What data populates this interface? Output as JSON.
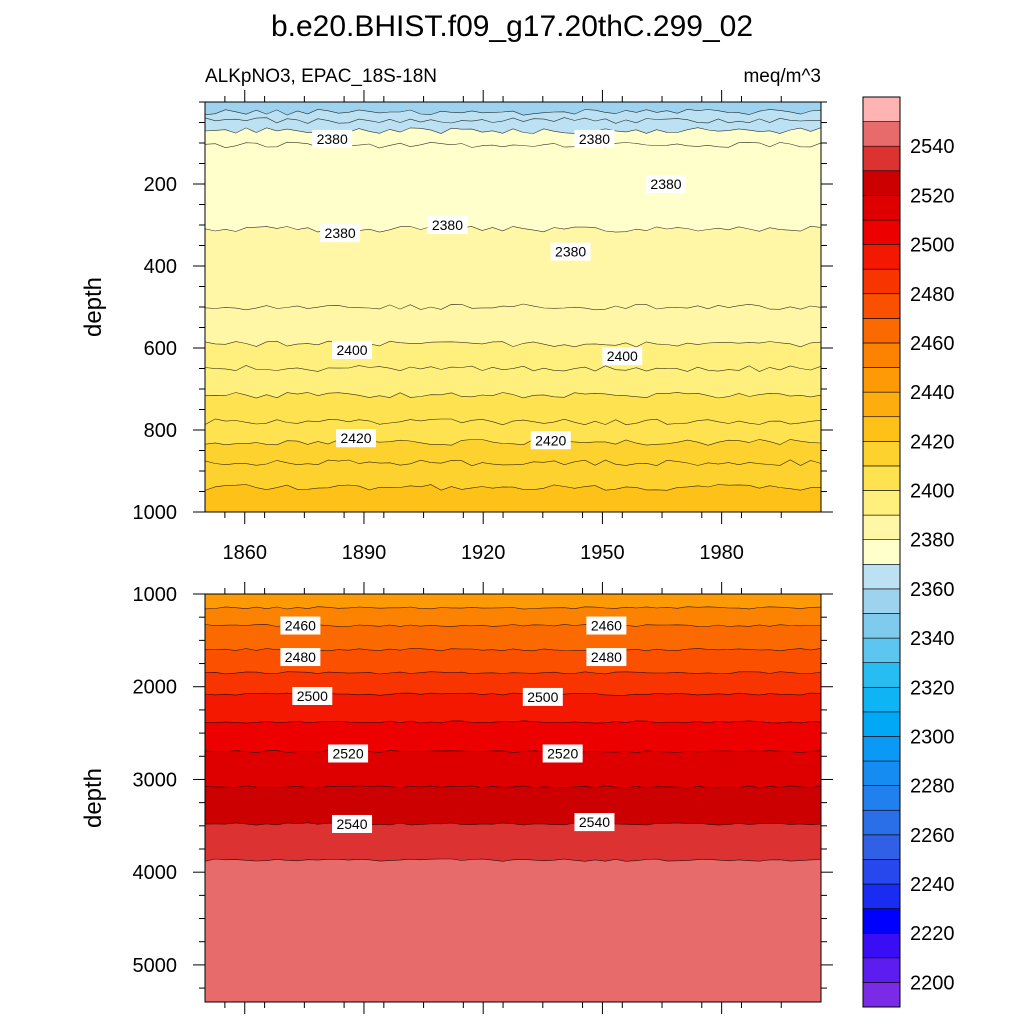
{
  "title": "b.e20.BHIST.f09_g17.20thC.299_02",
  "subtitle_left": "ALKpNO3, EPAC_18S-18N",
  "subtitle_right": "meq/m^3",
  "chart_data": [
    {
      "type": "heatmap",
      "panel": "upper",
      "ylabel": "depth",
      "xlabel": "",
      "x_ticks": [
        "1860",
        "1890",
        "1920",
        "1950",
        "1980"
      ],
      "x_tick_values": [
        1860,
        1890,
        1920,
        1950,
        1980
      ],
      "xlim": [
        1850,
        2005
      ],
      "y_ticks": [
        "200",
        "400",
        "600",
        "800",
        "1000"
      ],
      "y_tick_values": [
        200,
        400,
        600,
        800,
        1000
      ],
      "ylim": [
        0,
        1000
      ],
      "y_inverted": true,
      "contour_interval": 5,
      "contours": [
        {
          "level": 2360,
          "depth": 25
        },
        {
          "level": 2365,
          "depth": 45
        },
        {
          "level": 2370,
          "depth": 70
        },
        {
          "level": 2375,
          "depth": 105
        },
        {
          "level": 2380,
          "depth": 310
        },
        {
          "level": 2385,
          "depth": 500
        },
        {
          "level": 2390,
          "depth": 590
        },
        {
          "level": 2395,
          "depth": 650
        },
        {
          "level": 2400,
          "depth": 715
        },
        {
          "level": 2405,
          "depth": 780
        },
        {
          "level": 2410,
          "depth": 830
        },
        {
          "level": 2415,
          "depth": 880
        },
        {
          "level": 2420,
          "depth": 940
        }
      ],
      "contour_labels": [
        {
          "text": "2380",
          "x": 1882,
          "y": 90
        },
        {
          "text": "2380",
          "x": 1948,
          "y": 90
        },
        {
          "text": "2380",
          "x": 1966,
          "y": 200
        },
        {
          "text": "2380",
          "x": 1884,
          "y": 320
        },
        {
          "text": "2380",
          "x": 1911,
          "y": 300
        },
        {
          "text": "2380",
          "x": 1942,
          "y": 365
        },
        {
          "text": "2400",
          "x": 1887,
          "y": 605
        },
        {
          "text": "2400",
          "x": 1955,
          "y": 620
        },
        {
          "text": "2420",
          "x": 1888,
          "y": 820
        },
        {
          "text": "2420",
          "x": 1937,
          "y": 825
        }
      ]
    },
    {
      "type": "heatmap",
      "panel": "lower",
      "ylabel": "depth",
      "xlabel": "",
      "y_ticks": [
        "1000",
        "2000",
        "3000",
        "4000",
        "5000"
      ],
      "y_tick_values": [
        1000,
        2000,
        3000,
        4000,
        5000
      ],
      "ylim": [
        1000,
        5400
      ],
      "xlim": [
        1850,
        2005
      ],
      "y_inverted": true,
      "contour_interval": 10,
      "contours": [
        {
          "level": 2450,
          "depth": 1150
        },
        {
          "level": 2460,
          "depth": 1340
        },
        {
          "level": 2470,
          "depth": 1600
        },
        {
          "level": 2480,
          "depth": 1850
        },
        {
          "level": 2490,
          "depth": 2080
        },
        {
          "level": 2500,
          "depth": 2380
        },
        {
          "level": 2510,
          "depth": 2700
        },
        {
          "level": 2520,
          "depth": 3080
        },
        {
          "level": 2530,
          "depth": 3480
        },
        {
          "level": 2540,
          "depth": 3870
        }
      ],
      "contour_labels": [
        {
          "text": "2460",
          "x": 1874,
          "y": 1340
        },
        {
          "text": "2460",
          "x": 1951,
          "y": 1340
        },
        {
          "text": "2480",
          "x": 1874,
          "y": 1680
        },
        {
          "text": "2480",
          "x": 1951,
          "y": 1680
        },
        {
          "text": "2500",
          "x": 1877,
          "y": 2100
        },
        {
          "text": "2500",
          "x": 1935,
          "y": 2110
        },
        {
          "text": "2520",
          "x": 1886,
          "y": 2720
        },
        {
          "text": "2520",
          "x": 1940,
          "y": 2720
        },
        {
          "text": "2540",
          "x": 1887,
          "y": 3480
        },
        {
          "text": "2540",
          "x": 1948,
          "y": 3460
        }
      ]
    }
  ],
  "colorbar": {
    "min": 2190,
    "max": 2560,
    "tick_labels": [
      "2200",
      "2220",
      "2240",
      "2260",
      "2280",
      "2300",
      "2320",
      "2340",
      "2360",
      "2380",
      "2400",
      "2420",
      "2440",
      "2460",
      "2480",
      "2500",
      "2520",
      "2540"
    ],
    "tick_values": [
      2200,
      2220,
      2240,
      2260,
      2280,
      2300,
      2320,
      2340,
      2360,
      2380,
      2400,
      2420,
      2440,
      2460,
      2480,
      2500,
      2520,
      2540
    ],
    "bands": [
      {
        "from": 2190,
        "to": 2200,
        "color": "#7b2be8"
      },
      {
        "from": 2200,
        "to": 2210,
        "color": "#5d1cf0"
      },
      {
        "from": 2210,
        "to": 2220,
        "color": "#3a0ef5"
      },
      {
        "from": 2220,
        "to": 2230,
        "color": "#0000ff"
      },
      {
        "from": 2230,
        "to": 2240,
        "color": "#1b2cf2"
      },
      {
        "from": 2240,
        "to": 2250,
        "color": "#2748ec"
      },
      {
        "from": 2250,
        "to": 2260,
        "color": "#3060e6"
      },
      {
        "from": 2260,
        "to": 2270,
        "color": "#2a6fe8"
      },
      {
        "from": 2270,
        "to": 2280,
        "color": "#1f80ee"
      },
      {
        "from": 2280,
        "to": 2290,
        "color": "#148cf2"
      },
      {
        "from": 2290,
        "to": 2300,
        "color": "#0a99f5"
      },
      {
        "from": 2300,
        "to": 2310,
        "color": "#00a8f5"
      },
      {
        "from": 2310,
        "to": 2320,
        "color": "#0fb4f5"
      },
      {
        "from": 2320,
        "to": 2330,
        "color": "#28bdf2"
      },
      {
        "from": 2330,
        "to": 2340,
        "color": "#5cc5f0"
      },
      {
        "from": 2340,
        "to": 2350,
        "color": "#7fcbee"
      },
      {
        "from": 2350,
        "to": 2360,
        "color": "#9dd3ef"
      },
      {
        "from": 2360,
        "to": 2370,
        "color": "#bce1f2"
      },
      {
        "from": 2370,
        "to": 2380,
        "color": "#ffffcc"
      },
      {
        "from": 2380,
        "to": 2390,
        "color": "#fff7a6"
      },
      {
        "from": 2390,
        "to": 2400,
        "color": "#ffef7c"
      },
      {
        "from": 2400,
        "to": 2410,
        "color": "#fee250"
      },
      {
        "from": 2410,
        "to": 2420,
        "color": "#fed22e"
      },
      {
        "from": 2420,
        "to": 2430,
        "color": "#fdc118"
      },
      {
        "from": 2430,
        "to": 2440,
        "color": "#fdae0e"
      },
      {
        "from": 2440,
        "to": 2450,
        "color": "#fd9a06"
      },
      {
        "from": 2450,
        "to": 2460,
        "color": "#fc8302"
      },
      {
        "from": 2460,
        "to": 2470,
        "color": "#fb6a00"
      },
      {
        "from": 2470,
        "to": 2480,
        "color": "#fa5000"
      },
      {
        "from": 2480,
        "to": 2490,
        "color": "#f83400"
      },
      {
        "from": 2490,
        "to": 2500,
        "color": "#f41800"
      },
      {
        "from": 2500,
        "to": 2510,
        "color": "#ed0000"
      },
      {
        "from": 2510,
        "to": 2520,
        "color": "#de0000"
      },
      {
        "from": 2520,
        "to": 2530,
        "color": "#cc0000"
      },
      {
        "from": 2530,
        "to": 2540,
        "color": "#dc3232"
      },
      {
        "from": 2540,
        "to": 2550,
        "color": "#e86b6b"
      },
      {
        "from": 2550,
        "to": 2560,
        "color": "#ffb3b3"
      }
    ]
  }
}
